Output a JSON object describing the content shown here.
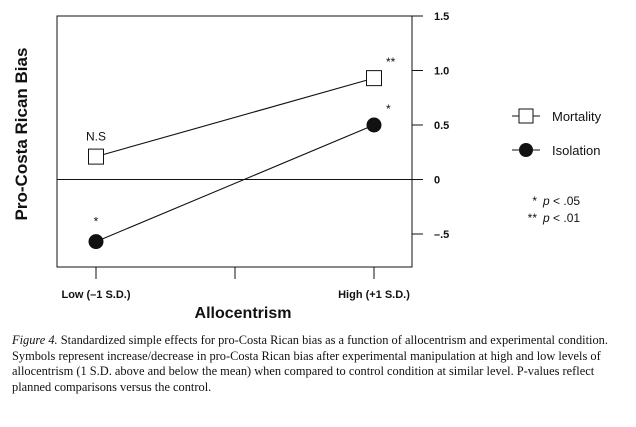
{
  "chart_data": {
    "type": "line",
    "categories": [
      "Low (–1 S.D.)",
      "High (+1 S.D.)"
    ],
    "series": [
      {
        "name": "Mortality",
        "values": [
          0.21,
          0.93
        ],
        "marker": "open-square",
        "annotations": [
          "N.S",
          "**"
        ]
      },
      {
        "name": "Isolation",
        "values": [
          -0.57,
          0.5
        ],
        "marker": "filled-circle",
        "annotations": [
          "*",
          "*"
        ]
      }
    ],
    "xlabel": "Allocentrism",
    "ylabel": "Pro-Costa Rican Bias",
    "ylim": [
      -0.8,
      1.5
    ],
    "yticks": [
      1.5,
      1.0,
      0.5,
      0,
      -0.5
    ],
    "ytick_labels": [
      "1.5",
      "1.0",
      "0.5",
      "0",
      "–.5"
    ],
    "y_axis_side": "right",
    "zero_line": true,
    "legend_position": "right",
    "significance_key": [
      {
        "symbol": "*",
        "text": "p < .05"
      },
      {
        "symbol": "**",
        "text": "p < .01"
      }
    ]
  },
  "caption": {
    "lead": "Figure 4.",
    "text": "Standardized simple effects for pro-Costa Rican bias as a function of allocentrism and experimental condition. Symbols represent increase/decrease in pro-Costa Rican bias after experimental manipulation at high and low levels of allocentrism (1 S.D. above and below the mean) when compared to control condition at similar level. P-values reflect planned comparisons versus the control."
  }
}
